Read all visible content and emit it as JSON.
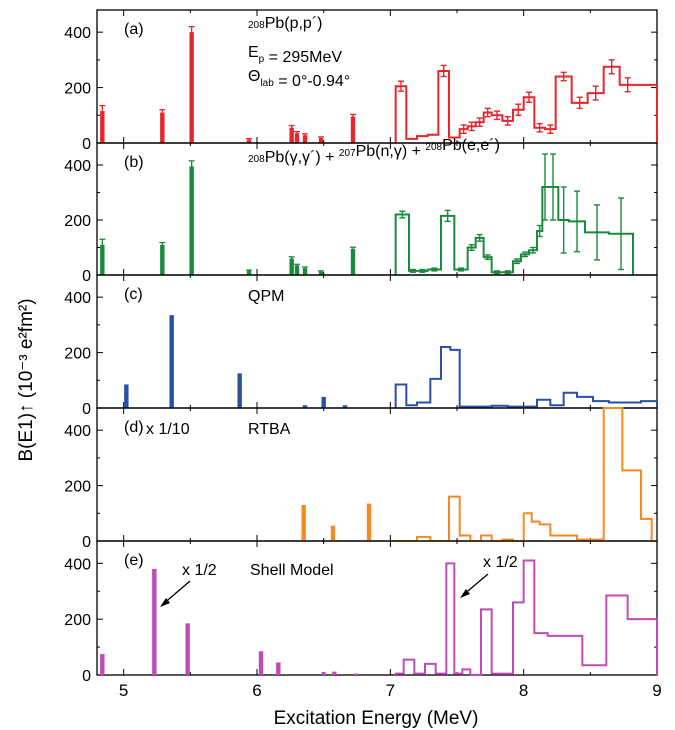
{
  "figure": {
    "xlabel": "Excitation Energy (MeV)",
    "ylabel": "B(E1)↑ (10⁻³ e²fm²)",
    "xlim": [
      4.8,
      9.0
    ],
    "xticks": [
      "5",
      "6",
      "7",
      "8",
      "9"
    ],
    "yticks": [
      "0",
      "200",
      "400"
    ]
  },
  "chart_data": [
    {
      "type": "bar",
      "panel": "(a)",
      "annotation_lines": [
        "208Pb(p,p´)",
        "Ep = 295MeV",
        "Θlab = 0°-0.94°"
      ],
      "color": "#e8262a",
      "ylim": [
        0,
        480
      ],
      "bars": [
        {
          "x": 4.84,
          "y": 115,
          "err": 20
        },
        {
          "x": 5.29,
          "y": 110,
          "err": 10
        },
        {
          "x": 5.51,
          "y": 400,
          "err": 20
        },
        {
          "x": 5.94,
          "y": 12,
          "err": 4
        },
        {
          "x": 6.26,
          "y": 55,
          "err": 8
        },
        {
          "x": 6.3,
          "y": 35,
          "err": 6
        },
        {
          "x": 6.36,
          "y": 28,
          "err": 5
        },
        {
          "x": 6.48,
          "y": 18,
          "err": 4
        },
        {
          "x": 6.72,
          "y": 95,
          "err": 8
        }
      ],
      "hist_edges": [
        7.04,
        7.12,
        7.2,
        7.28,
        7.36,
        7.44,
        7.52,
        7.58,
        7.64,
        7.7,
        7.76,
        7.84,
        7.92,
        8.0,
        8.08,
        8.16,
        8.24,
        8.36,
        8.48,
        8.6,
        8.72,
        8.84,
        8.92,
        9.0
      ],
      "hist_values": [
        205,
        15,
        25,
        30,
        260,
        20,
        50,
        60,
        75,
        110,
        100,
        80,
        120,
        165,
        55,
        50,
        240,
        145,
        180,
        275,
        210,
        210,
        210
      ],
      "hist_errors": [
        18,
        0,
        0,
        0,
        20,
        0,
        15,
        15,
        15,
        15,
        15,
        15,
        20,
        18,
        15,
        15,
        15,
        20,
        25,
        25,
        25,
        0,
        0
      ]
    },
    {
      "type": "bar",
      "panel": "(b)",
      "annotation_lines": [
        "208Pb(γ,γ´) + 207Pb(n,γ) + 208Pb(e,e´)"
      ],
      "color": "#1b8a3c",
      "ylim": [
        0,
        480
      ],
      "bars": [
        {
          "x": 4.84,
          "y": 110,
          "err": 20
        },
        {
          "x": 5.29,
          "y": 110,
          "err": 8
        },
        {
          "x": 5.51,
          "y": 395,
          "err": 20
        },
        {
          "x": 5.94,
          "y": 15,
          "err": 3
        },
        {
          "x": 6.26,
          "y": 60,
          "err": 6
        },
        {
          "x": 6.3,
          "y": 35,
          "err": 4
        },
        {
          "x": 6.36,
          "y": 25,
          "err": 4
        },
        {
          "x": 6.48,
          "y": 12,
          "err": 3
        },
        {
          "x": 6.72,
          "y": 95,
          "err": 6
        }
      ],
      "hist_edges": [
        7.04,
        7.14,
        7.2,
        7.28,
        7.38,
        7.48,
        7.58,
        7.64,
        7.7,
        7.76,
        7.84,
        7.92,
        7.98,
        8.04,
        8.1,
        8.14,
        8.18,
        8.26,
        8.34,
        8.46,
        8.64,
        8.82
      ],
      "hist_values": [
        220,
        15,
        15,
        20,
        215,
        20,
        100,
        135,
        65,
        10,
        10,
        50,
        75,
        90,
        160,
        320,
        320,
        200,
        195,
        155,
        150
      ],
      "hist_errors": [
        12,
        5,
        5,
        5,
        20,
        5,
        10,
        12,
        8,
        5,
        5,
        8,
        8,
        10,
        20,
        120,
        120,
        120,
        110,
        100,
        130
      ]
    },
    {
      "type": "bar",
      "panel": "(c)",
      "annotation_lines": [
        "QPM"
      ],
      "color": "#2750a6",
      "ylim": [
        0,
        480
      ],
      "bars": [
        {
          "x": 5.02,
          "y": 85
        },
        {
          "x": 5.36,
          "y": 335
        },
        {
          "x": 5.87,
          "y": 125
        },
        {
          "x": 6.36,
          "y": 10
        },
        {
          "x": 6.5,
          "y": 40
        },
        {
          "x": 6.66,
          "y": 10
        }
      ],
      "hist_edges": [
        7.04,
        7.12,
        7.2,
        7.3,
        7.38,
        7.45,
        7.52,
        7.64,
        7.76,
        7.88,
        8.0,
        8.1,
        8.2,
        8.3,
        8.4,
        8.52,
        8.64,
        8.76,
        8.88,
        9.0
      ],
      "hist_values": [
        85,
        10,
        20,
        105,
        220,
        210,
        5,
        5,
        8,
        5,
        5,
        30,
        10,
        55,
        40,
        25,
        20,
        20,
        25
      ],
      "hist_errors": []
    },
    {
      "type": "bar",
      "panel": "(d)",
      "annotation_lines": [
        "x 1/10",
        "RTBA"
      ],
      "color": "#f38a22",
      "ylim": [
        0,
        480
      ],
      "bars": [
        {
          "x": 6.35,
          "y": 130
        },
        {
          "x": 6.57,
          "y": 55
        },
        {
          "x": 6.84,
          "y": 135
        }
      ],
      "hist_edges": [
        7.04,
        7.2,
        7.3,
        7.44,
        7.52,
        7.6,
        7.68,
        7.76,
        7.84,
        7.92,
        8.0,
        8.06,
        8.12,
        8.2,
        8.4,
        8.6,
        8.74,
        8.88,
        8.96,
        9.0
      ],
      "hist_values": [
        0,
        15,
        0,
        160,
        20,
        0,
        20,
        0,
        5,
        0,
        100,
        70,
        60,
        20,
        5,
        490,
        255,
        80,
        0
      ],
      "hist_errors": []
    },
    {
      "type": "bar",
      "panel": "(e)",
      "annotation_lines": [
        "x 1/2",
        "Shell Model",
        "x 1/2"
      ],
      "color": "#c04bb5",
      "ylim": [
        0,
        480
      ],
      "bars": [
        {
          "x": 4.84,
          "y": 75
        },
        {
          "x": 5.23,
          "y": 380
        },
        {
          "x": 5.48,
          "y": 185
        },
        {
          "x": 6.03,
          "y": 85
        },
        {
          "x": 6.16,
          "y": 45
        },
        {
          "x": 6.5,
          "y": 10
        },
        {
          "x": 6.58,
          "y": 12
        },
        {
          "x": 6.74,
          "y": 5
        }
      ],
      "hist_edges": [
        7.04,
        7.1,
        7.18,
        7.26,
        7.34,
        7.42,
        7.48,
        7.54,
        7.6,
        7.68,
        7.76,
        7.84,
        7.92,
        8.0,
        8.08,
        8.18,
        8.3,
        8.44,
        8.62,
        8.78,
        8.92,
        9.0
      ],
      "hist_values": [
        5,
        55,
        5,
        40,
        5,
        400,
        5,
        20,
        0,
        235,
        5,
        5,
        260,
        410,
        150,
        140,
        140,
        35,
        285,
        200,
        200
      ],
      "hist_errors": []
    }
  ]
}
